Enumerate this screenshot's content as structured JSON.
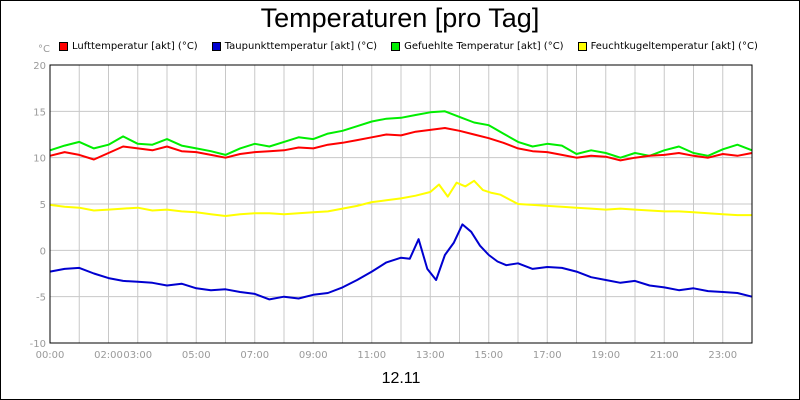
{
  "chart_data": {
    "type": "line",
    "title": "Temperaturen [pro Tag]",
    "ylabel": "°C",
    "xlabel": "12.11",
    "ylim": [
      -10,
      20
    ],
    "xlim": [
      0,
      24
    ],
    "grid": true,
    "legend_position": "top",
    "y_ticks": [
      "20",
      "15",
      "10",
      "5",
      "0",
      "-5",
      "-10"
    ],
    "x_ticks": [
      "00:00",
      "02:00",
      "03:00",
      "05:00",
      "07:00",
      "09:00",
      "11:00",
      "13:00",
      "15:00",
      "17:00",
      "19:00",
      "21:00",
      "23:00"
    ],
    "series": [
      {
        "name": "Lufttemperatur [akt] (°C)",
        "color": "#ff0000",
        "x": [
          0,
          0.5,
          1,
          1.5,
          2,
          2.5,
          3,
          3.5,
          4,
          4.5,
          5,
          5.5,
          6,
          6.5,
          7,
          7.5,
          8,
          8.5,
          9,
          9.5,
          10,
          10.5,
          11,
          11.5,
          12,
          12.5,
          13,
          13.5,
          14,
          14.5,
          15,
          15.5,
          16,
          16.5,
          17,
          17.5,
          18,
          18.5,
          19,
          19.5,
          20,
          20.5,
          21,
          21.5,
          22,
          22.5,
          23,
          23.5,
          24
        ],
        "values": [
          10.2,
          10.6,
          10.3,
          9.8,
          10.5,
          11.2,
          11,
          10.8,
          11.2,
          10.7,
          10.6,
          10.3,
          10.0,
          10.4,
          10.6,
          10.7,
          10.8,
          11.1,
          11.0,
          11.4,
          11.6,
          11.9,
          12.2,
          12.5,
          12.4,
          12.8,
          13.0,
          13.2,
          12.9,
          12.5,
          12.1,
          11.6,
          11.0,
          10.7,
          10.6,
          10.3,
          10.0,
          10.2,
          10.1,
          9.7,
          10.0,
          10.2,
          10.3,
          10.5,
          10.2,
          10.0,
          10.4,
          10.2,
          10.5
        ]
      },
      {
        "name": "Taupunkttemperatur [akt] (°C)",
        "color": "#0000d0",
        "x": [
          0,
          0.5,
          1,
          1.5,
          2,
          2.5,
          3,
          3.5,
          4,
          4.5,
          5,
          5.5,
          6,
          6.5,
          7,
          7.5,
          8,
          8.5,
          9,
          9.5,
          10,
          10.5,
          11,
          11.5,
          12,
          12.3,
          12.6,
          12.9,
          13.2,
          13.5,
          13.8,
          14.1,
          14.4,
          14.7,
          15,
          15.3,
          15.6,
          16,
          16.5,
          17,
          17.5,
          18,
          18.5,
          19,
          19.5,
          20,
          20.5,
          21,
          21.5,
          22,
          22.5,
          23,
          23.5,
          24
        ],
        "values": [
          -2.3,
          -2.0,
          -1.9,
          -2.5,
          -3.0,
          -3.3,
          -3.4,
          -3.5,
          -3.8,
          -3.6,
          -4.1,
          -4.3,
          -4.2,
          -4.5,
          -4.7,
          -5.3,
          -5.0,
          -5.2,
          -4.8,
          -4.6,
          -4.0,
          -3.2,
          -2.3,
          -1.3,
          -0.8,
          -0.9,
          1.2,
          -2.0,
          -3.2,
          -0.5,
          0.8,
          2.8,
          2.0,
          0.5,
          -0.5,
          -1.2,
          -1.6,
          -1.4,
          -2.0,
          -1.8,
          -1.9,
          -2.3,
          -2.9,
          -3.2,
          -3.5,
          -3.3,
          -3.8,
          -4.0,
          -4.3,
          -4.1,
          -4.4,
          -4.5,
          -4.6,
          -5.0
        ]
      },
      {
        "name": "Gefuehlte Temperatur [akt] (°C)",
        "color": "#00ee00",
        "x": [
          0,
          0.5,
          1,
          1.5,
          2,
          2.5,
          3,
          3.5,
          4,
          4.5,
          5,
          5.5,
          6,
          6.5,
          7,
          7.5,
          8,
          8.5,
          9,
          9.5,
          10,
          10.5,
          11,
          11.5,
          12,
          12.5,
          13,
          13.5,
          14,
          14.5,
          15,
          15.5,
          16,
          16.5,
          17,
          17.5,
          18,
          18.5,
          19,
          19.5,
          20,
          20.5,
          21,
          21.5,
          22,
          22.5,
          23,
          23.5,
          24
        ],
        "values": [
          10.8,
          11.3,
          11.7,
          11.0,
          11.4,
          12.3,
          11.5,
          11.4,
          12.0,
          11.3,
          11.0,
          10.7,
          10.3,
          11.0,
          11.5,
          11.2,
          11.7,
          12.2,
          12.0,
          12.6,
          12.9,
          13.4,
          13.9,
          14.2,
          14.3,
          14.6,
          14.9,
          15.0,
          14.4,
          13.8,
          13.5,
          12.6,
          11.7,
          11.2,
          11.5,
          11.3,
          10.4,
          10.8,
          10.5,
          10.0,
          10.5,
          10.2,
          10.8,
          11.2,
          10.5,
          10.2,
          10.9,
          11.4,
          10.8
        ]
      },
      {
        "name": "Feuchtkugeltemperatur [akt] (°C)",
        "color": "#ffff00",
        "x": [
          0,
          0.5,
          1,
          1.5,
          2,
          2.5,
          3,
          3.5,
          4,
          4.5,
          5,
          5.5,
          6,
          6.5,
          7,
          7.5,
          8,
          8.5,
          9,
          9.5,
          10,
          10.5,
          11,
          11.5,
          12,
          12.5,
          13,
          13.3,
          13.6,
          13.9,
          14.2,
          14.5,
          14.8,
          15.1,
          15.4,
          15.7,
          16,
          16.5,
          17,
          17.5,
          18,
          18.5,
          19,
          19.5,
          20,
          20.5,
          21,
          21.5,
          22,
          22.5,
          23,
          23.5,
          24
        ],
        "values": [
          4.9,
          4.7,
          4.6,
          4.3,
          4.4,
          4.5,
          4.6,
          4.3,
          4.4,
          4.2,
          4.1,
          3.9,
          3.7,
          3.9,
          4.0,
          4.0,
          3.9,
          4.0,
          4.1,
          4.2,
          4.5,
          4.8,
          5.2,
          5.4,
          5.6,
          5.9,
          6.3,
          7.1,
          5.8,
          7.3,
          6.9,
          7.5,
          6.5,
          6.2,
          6.0,
          5.5,
          5.0,
          4.9,
          4.8,
          4.7,
          4.6,
          4.5,
          4.4,
          4.5,
          4.4,
          4.3,
          4.2,
          4.2,
          4.1,
          4.0,
          3.9,
          3.8,
          3.8
        ]
      }
    ]
  }
}
